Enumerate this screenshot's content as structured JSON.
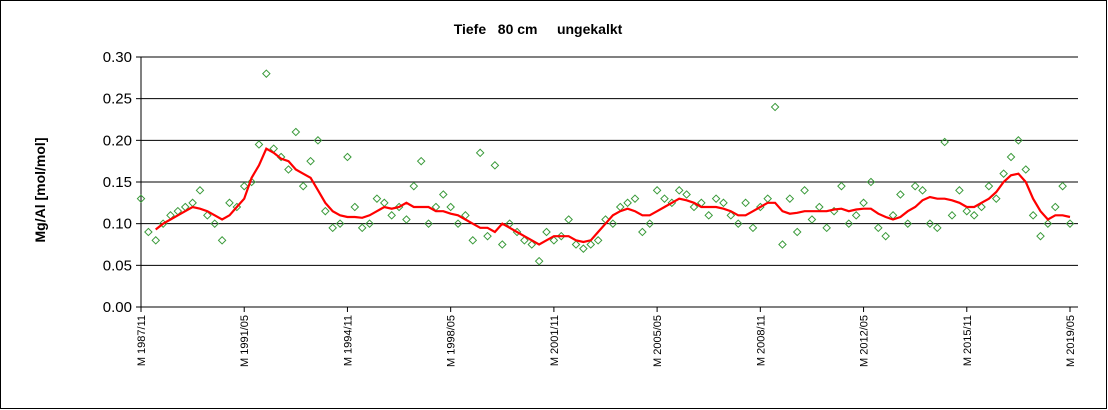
{
  "chart_data": {
    "type": "scatter",
    "title": "Tiefe   80 cm     ungekalkt",
    "y_label": "Mg/Al [mol/mol]",
    "x": [
      "1987/11",
      "1988/02",
      "1988/05",
      "1988/08",
      "1988/11",
      "1989/02",
      "1989/05",
      "1989/08",
      "1989/11",
      "1990/02",
      "1990/05",
      "1990/08",
      "1990/11",
      "1991/02",
      "1991/05",
      "1991/08",
      "1991/11",
      "1992/02",
      "1992/05",
      "1992/08",
      "1992/11",
      "1993/02",
      "1993/05",
      "1993/08",
      "1993/11",
      "1994/02",
      "1994/05",
      "1994/08",
      "1994/11",
      "1995/02",
      "1995/05",
      "1995/08",
      "1995/11",
      "1996/02",
      "1996/05",
      "1996/08",
      "1996/11",
      "1997/02",
      "1997/05",
      "1997/08",
      "1997/11",
      "1998/02",
      "1998/05",
      "1998/08",
      "1998/11",
      "1999/02",
      "1999/05",
      "1999/08",
      "1999/11",
      "2000/02",
      "2000/05",
      "2000/08",
      "2000/11",
      "2001/02",
      "2001/05",
      "2001/08",
      "2001/11",
      "2002/02",
      "2002/05",
      "2002/08",
      "2002/11",
      "2003/02",
      "2003/05",
      "2003/08",
      "2003/11",
      "2004/02",
      "2004/05",
      "2004/08",
      "2004/11",
      "2005/02",
      "2005/05",
      "2005/08",
      "2005/11",
      "2006/02",
      "2006/05",
      "2006/08",
      "2006/11",
      "2007/02",
      "2007/05",
      "2007/08",
      "2007/11",
      "2008/02",
      "2008/05",
      "2008/08",
      "2008/11",
      "2009/02",
      "2009/05",
      "2009/08",
      "2009/11",
      "2010/02",
      "2010/05",
      "2010/08",
      "2010/11",
      "2011/02",
      "2011/05",
      "2011/08",
      "2011/11",
      "2012/02",
      "2012/05",
      "2012/08",
      "2012/11",
      "2013/02",
      "2013/05",
      "2013/08",
      "2013/11",
      "2014/02",
      "2014/05",
      "2014/08",
      "2014/11",
      "2015/02",
      "2015/05",
      "2015/08",
      "2015/11",
      "2016/02",
      "2016/05",
      "2016/08",
      "2016/11",
      "2017/02",
      "2017/05",
      "2017/08",
      "2017/11",
      "2018/02",
      "2018/05",
      "2018/08",
      "2018/11",
      "2019/02",
      "2019/05"
    ],
    "series": [
      {
        "type": "scatter",
        "color": "#3a9a3a",
        "marker": "diamond-open",
        "values": [
          0.13,
          0.09,
          0.08,
          0.1,
          0.11,
          0.115,
          0.12,
          0.125,
          0.14,
          0.11,
          0.1,
          0.08,
          0.125,
          0.12,
          0.145,
          0.15,
          0.195,
          0.28,
          0.19,
          0.18,
          0.165,
          0.21,
          0.145,
          0.175,
          0.2,
          0.115,
          0.095,
          0.1,
          0.18,
          0.12,
          0.095,
          0.1,
          0.13,
          0.125,
          0.11,
          0.12,
          0.105,
          0.145,
          0.175,
          0.1,
          0.12,
          0.135,
          0.12,
          0.1,
          0.11,
          0.08,
          0.185,
          0.085,
          0.17,
          0.075,
          0.1,
          0.09,
          0.08,
          0.075,
          0.055,
          0.09,
          0.08,
          0.085,
          0.105,
          0.075,
          0.07,
          0.075,
          0.08,
          0.105,
          0.1,
          0.12,
          0.125,
          0.13,
          0.09,
          0.1,
          0.14,
          0.13,
          0.125,
          0.14,
          0.135,
          0.12,
          0.125,
          0.11,
          0.13,
          0.125,
          0.11,
          0.1,
          0.125,
          0.095,
          0.12,
          0.13,
          0.24,
          0.075,
          0.13,
          0.09,
          0.14,
          0.105,
          0.12,
          0.095,
          0.115,
          0.145,
          0.1,
          0.11,
          0.125,
          0.15,
          0.095,
          0.085,
          0.11,
          0.135,
          0.1,
          0.145,
          0.14,
          0.1,
          0.095,
          0.198,
          0.11,
          0.14,
          0.115,
          0.11,
          0.12,
          0.145,
          0.13,
          0.16,
          0.18,
          0.2,
          0.165,
          0.11,
          0.085,
          0.1,
          0.12,
          0.145,
          0.1
        ]
      },
      {
        "type": "line",
        "color": "#ff0000",
        "values": [
          null,
          null,
          0.093,
          0.1,
          0.105,
          0.11,
          0.115,
          0.12,
          0.118,
          0.115,
          0.11,
          0.105,
          0.11,
          0.12,
          0.13,
          0.155,
          0.17,
          0.19,
          0.185,
          0.178,
          0.175,
          0.165,
          0.16,
          0.155,
          0.14,
          0.125,
          0.115,
          0.11,
          0.108,
          0.108,
          0.107,
          0.11,
          0.115,
          0.12,
          0.118,
          0.12,
          0.125,
          0.12,
          0.12,
          0.12,
          0.115,
          0.115,
          0.112,
          0.11,
          0.105,
          0.1,
          0.095,
          0.095,
          0.09,
          0.1,
          0.095,
          0.09,
          0.085,
          0.08,
          0.075,
          0.08,
          0.085,
          0.085,
          0.085,
          0.08,
          0.078,
          0.08,
          0.09,
          0.1,
          0.11,
          0.115,
          0.118,
          0.115,
          0.11,
          0.11,
          0.115,
          0.12,
          0.125,
          0.13,
          0.128,
          0.125,
          0.12,
          0.12,
          0.12,
          0.118,
          0.115,
          0.11,
          0.11,
          0.115,
          0.12,
          0.125,
          0.125,
          0.115,
          0.112,
          0.113,
          0.115,
          0.115,
          0.115,
          0.115,
          0.117,
          0.118,
          0.115,
          0.117,
          0.118,
          0.118,
          0.112,
          0.108,
          0.105,
          0.108,
          0.115,
          0.12,
          0.128,
          0.132,
          0.13,
          0.13,
          0.128,
          0.125,
          0.12,
          0.12,
          0.125,
          0.13,
          0.138,
          0.15,
          0.158,
          0.16,
          0.15,
          0.13,
          0.115,
          0.105,
          0.11,
          0.11,
          0.108
        ]
      }
    ],
    "ylim": [
      0,
      0.3
    ],
    "yticks": [
      {
        "value": 0,
        "label": "0.00"
      },
      {
        "value": 0.05,
        "label": "0.05"
      },
      {
        "value": 0.1,
        "label": "0.10"
      },
      {
        "value": 0.15,
        "label": "0.15"
      },
      {
        "value": 0.2,
        "label": "0.20"
      },
      {
        "value": 0.25,
        "label": "0.25"
      },
      {
        "value": 0.3,
        "label": "0.30"
      }
    ],
    "xticks": [
      {
        "value": "1987/11",
        "label": "M 1987/11"
      },
      {
        "value": "1991/05",
        "label": "M 1991/05"
      },
      {
        "value": "1994/11",
        "label": "M 1994/11"
      },
      {
        "value": "1998/05",
        "label": "M 1998/05"
      },
      {
        "value": "2001/11",
        "label": "M 2001/11"
      },
      {
        "value": "2005/05",
        "label": "M 2005/05"
      },
      {
        "value": "2008/11",
        "label": "M 2008/11"
      },
      {
        "value": "2012/05",
        "label": "M 2012/05"
      },
      {
        "value": "2015/11",
        "label": "M 2015/11"
      },
      {
        "value": "2019/05",
        "label": "M 2019/05"
      }
    ],
    "grid": true
  }
}
